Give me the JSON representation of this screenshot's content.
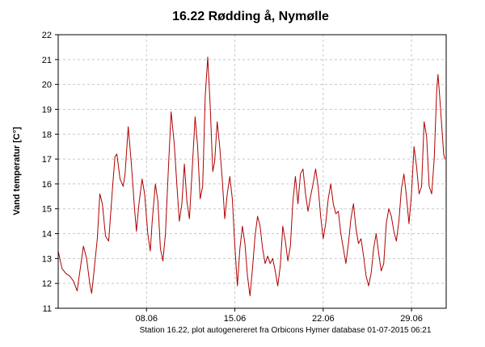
{
  "chart_data": {
    "type": "line",
    "title": "16.22 Rødding å, Nymølle",
    "xlabel": "",
    "ylabel": "Vand temperatur [C°]",
    "footer": "Station 16.22, plot autogenereret fra Orbicons Hymer database 01-07-2015 06:21",
    "ylim": [
      11,
      22
    ],
    "yticks": [
      11,
      12,
      13,
      14,
      15,
      16,
      17,
      18,
      19,
      20,
      21,
      22
    ],
    "xlim": [
      1.0,
      31.75
    ],
    "xticks": [
      {
        "x": 8.0,
        "label": "08.06"
      },
      {
        "x": 15.0,
        "label": "15.06"
      },
      {
        "x": 22.0,
        "label": "22.06"
      },
      {
        "x": 29.0,
        "label": "29.06"
      }
    ],
    "grid": true,
    "legend": "none",
    "series": [
      {
        "color": "#b00000",
        "points": [
          [
            1.0,
            13.3
          ],
          [
            1.3,
            12.6
          ],
          [
            1.6,
            12.4
          ],
          [
            1.9,
            12.3
          ],
          [
            2.2,
            12.1
          ],
          [
            2.5,
            11.7
          ],
          [
            2.75,
            12.6
          ],
          [
            3.0,
            13.5
          ],
          [
            3.25,
            13.0
          ],
          [
            3.5,
            12.0
          ],
          [
            3.65,
            11.6
          ],
          [
            3.8,
            12.3
          ],
          [
            4.1,
            13.8
          ],
          [
            4.3,
            15.6
          ],
          [
            4.5,
            15.2
          ],
          [
            4.75,
            13.9
          ],
          [
            5.0,
            13.7
          ],
          [
            5.3,
            15.8
          ],
          [
            5.5,
            17.1
          ],
          [
            5.65,
            17.2
          ],
          [
            5.9,
            16.2
          ],
          [
            6.15,
            15.9
          ],
          [
            6.3,
            16.4
          ],
          [
            6.55,
            18.3
          ],
          [
            6.8,
            16.8
          ],
          [
            7.05,
            15.0
          ],
          [
            7.2,
            14.1
          ],
          [
            7.4,
            15.2
          ],
          [
            7.65,
            16.2
          ],
          [
            7.85,
            15.6
          ],
          [
            8.1,
            14.0
          ],
          [
            8.3,
            13.3
          ],
          [
            8.45,
            14.5
          ],
          [
            8.7,
            16.0
          ],
          [
            8.9,
            15.3
          ],
          [
            9.1,
            13.4
          ],
          [
            9.3,
            12.9
          ],
          [
            9.5,
            14.0
          ],
          [
            9.75,
            16.8
          ],
          [
            9.95,
            18.9
          ],
          [
            10.2,
            17.6
          ],
          [
            10.4,
            16.0
          ],
          [
            10.6,
            14.5
          ],
          [
            10.8,
            15.2
          ],
          [
            11.0,
            16.8
          ],
          [
            11.2,
            15.3
          ],
          [
            11.4,
            14.6
          ],
          [
            11.6,
            16.4
          ],
          [
            11.85,
            18.7
          ],
          [
            12.05,
            17.5
          ],
          [
            12.25,
            15.4
          ],
          [
            12.45,
            15.9
          ],
          [
            12.65,
            19.5
          ],
          [
            12.85,
            21.1
          ],
          [
            13.05,
            19.1
          ],
          [
            13.25,
            16.5
          ],
          [
            13.4,
            16.9
          ],
          [
            13.6,
            18.5
          ],
          [
            13.8,
            17.5
          ],
          [
            14.0,
            16.2
          ],
          [
            14.2,
            14.6
          ],
          [
            14.4,
            15.6
          ],
          [
            14.6,
            16.3
          ],
          [
            14.8,
            15.4
          ],
          [
            15.0,
            13.5
          ],
          [
            15.2,
            11.9
          ],
          [
            15.4,
            13.4
          ],
          [
            15.6,
            14.3
          ],
          [
            15.8,
            13.6
          ],
          [
            16.0,
            12.3
          ],
          [
            16.2,
            11.5
          ],
          [
            16.4,
            12.6
          ],
          [
            16.6,
            13.9
          ],
          [
            16.8,
            14.7
          ],
          [
            17.0,
            14.3
          ],
          [
            17.2,
            13.4
          ],
          [
            17.4,
            12.8
          ],
          [
            17.6,
            13.1
          ],
          [
            17.8,
            12.8
          ],
          [
            18.0,
            13.0
          ],
          [
            18.2,
            12.5
          ],
          [
            18.4,
            11.9
          ],
          [
            18.6,
            12.7
          ],
          [
            18.8,
            14.3
          ],
          [
            19.0,
            13.7
          ],
          [
            19.2,
            12.9
          ],
          [
            19.4,
            13.5
          ],
          [
            19.6,
            15.3
          ],
          [
            19.8,
            16.3
          ],
          [
            20.0,
            15.2
          ],
          [
            20.2,
            16.4
          ],
          [
            20.4,
            16.6
          ],
          [
            20.6,
            15.6
          ],
          [
            20.8,
            14.9
          ],
          [
            21.0,
            15.5
          ],
          [
            21.2,
            16.0
          ],
          [
            21.4,
            16.6
          ],
          [
            21.6,
            15.9
          ],
          [
            21.8,
            14.7
          ],
          [
            22.0,
            13.8
          ],
          [
            22.2,
            14.4
          ],
          [
            22.4,
            15.4
          ],
          [
            22.6,
            16.0
          ],
          [
            22.8,
            15.2
          ],
          [
            23.0,
            14.8
          ],
          [
            23.2,
            14.9
          ],
          [
            23.4,
            14.0
          ],
          [
            23.6,
            13.4
          ],
          [
            23.8,
            12.8
          ],
          [
            24.0,
            13.6
          ],
          [
            24.2,
            14.6
          ],
          [
            24.4,
            15.2
          ],
          [
            24.6,
            14.2
          ],
          [
            24.8,
            13.6
          ],
          [
            25.0,
            13.8
          ],
          [
            25.2,
            13.1
          ],
          [
            25.4,
            12.3
          ],
          [
            25.6,
            11.9
          ],
          [
            25.8,
            12.4
          ],
          [
            26.0,
            13.4
          ],
          [
            26.2,
            14.0
          ],
          [
            26.4,
            13.2
          ],
          [
            26.6,
            12.5
          ],
          [
            26.8,
            12.8
          ],
          [
            27.0,
            14.4
          ],
          [
            27.2,
            15.0
          ],
          [
            27.4,
            14.7
          ],
          [
            27.6,
            14.1
          ],
          [
            27.8,
            13.7
          ],
          [
            28.0,
            14.5
          ],
          [
            28.2,
            15.8
          ],
          [
            28.4,
            16.4
          ],
          [
            28.6,
            15.5
          ],
          [
            28.8,
            14.4
          ],
          [
            29.0,
            15.6
          ],
          [
            29.2,
            17.5
          ],
          [
            29.4,
            16.7
          ],
          [
            29.6,
            15.6
          ],
          [
            29.8,
            15.9
          ],
          [
            30.0,
            18.5
          ],
          [
            30.2,
            17.9
          ],
          [
            30.4,
            15.9
          ],
          [
            30.6,
            15.6
          ],
          [
            30.8,
            17.0
          ],
          [
            31.0,
            19.8
          ],
          [
            31.1,
            20.4
          ],
          [
            31.25,
            19.4
          ],
          [
            31.4,
            18.3
          ],
          [
            31.55,
            17.2
          ],
          [
            31.65,
            17.0
          ]
        ]
      }
    ]
  }
}
